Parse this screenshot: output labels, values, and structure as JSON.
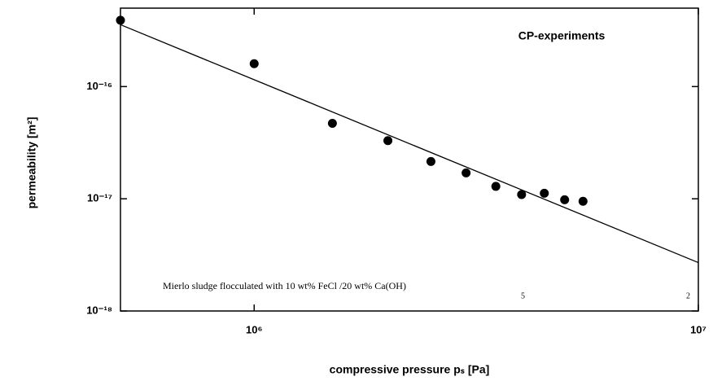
{
  "chart_data": {
    "type": "scatter",
    "annotation": "CP-experiments",
    "caption": "Mierlo sludge flocculated with 10 wt% FeCl /20 wt% Ca(OH)",
    "caption_marks": [
      "5",
      "2"
    ],
    "xlabel": "compressive pressure pₛ [Pa]",
    "ylabel": "permeability [m²]",
    "xscale": "log",
    "yscale": "log",
    "xlim": [
      500000,
      10000000
    ],
    "ylim": [
      1e-18,
      5e-16
    ],
    "xticks": [
      {
        "value": 1000000,
        "label": "10⁶"
      },
      {
        "value": 10000000,
        "label": "10⁷"
      }
    ],
    "yticks": [
      {
        "value": 1e-16,
        "label": "10⁻¹⁶"
      },
      {
        "value": 1e-17,
        "label": "10⁻¹⁷"
      },
      {
        "value": 1e-18,
        "label": "10⁻¹⁸"
      }
    ],
    "series": [
      {
        "mode": "markers",
        "color": "#000000",
        "x": [
          500000,
          1000000,
          1500000,
          2000000,
          2500000,
          3000000,
          3500000,
          4000000,
          4500000,
          5000000,
          5500000
        ],
        "values": [
          3.9e-16,
          1.6e-16,
          4.7e-17,
          3.3e-17,
          2.15e-17,
          1.7e-17,
          1.29e-17,
          1.09e-17,
          1.12e-17,
          9.8e-18,
          9.5e-18
        ]
      },
      {
        "mode": "line",
        "color": "#000000",
        "x": [
          500000,
          10000000
        ],
        "values": [
          3.56e-16,
          2.7e-18
        ]
      }
    ]
  }
}
